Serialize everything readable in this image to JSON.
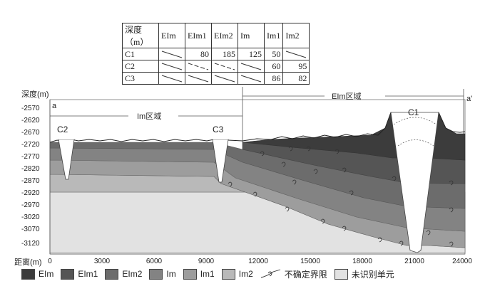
{
  "table": {
    "headers": [
      "深度（m）",
      "EIm",
      "EIm1",
      "EIm2",
      "Im",
      "Im1",
      "Im2"
    ],
    "rows": [
      {
        "label": "C1",
        "values": [
          "",
          "80",
          "185",
          "125",
          "50",
          ""
        ]
      },
      {
        "label": "C2",
        "values": [
          "",
          "",
          "",
          "",
          "60",
          "95"
        ]
      },
      {
        "label": "C3",
        "values": [
          "",
          "",
          "",
          "",
          "86",
          "82"
        ]
      }
    ]
  },
  "section": {
    "y_axis_label": "深度(m)",
    "y_ticks": [
      "-2570",
      "-2620",
      "-2670",
      "-2720",
      "-2770",
      "-2820",
      "-2870",
      "-2920",
      "-2970",
      "-3020",
      "-3070",
      "-3120"
    ],
    "x_axis_label": "距离(m)",
    "x_ticks": [
      "0",
      "3000",
      "6000",
      "9000",
      "12000",
      "15000",
      "18000",
      "21000",
      "24000"
    ],
    "region_left": "Im区域",
    "region_right": "EIm区域",
    "end_left": "a",
    "end_right": "a'",
    "wells": [
      "C2",
      "C3",
      "C1"
    ]
  },
  "legend": [
    {
      "label": "EIm",
      "color": "#3c3c3c"
    },
    {
      "label": "EIm1",
      "color": "#555555"
    },
    {
      "label": "EIm2",
      "color": "#6c6c6c"
    },
    {
      "label": "Im",
      "color": "#838383"
    },
    {
      "label": "Im1",
      "color": "#9d9d9d"
    },
    {
      "label": "Im2",
      "color": "#b9b9b9"
    },
    {
      "label": "不确定界限",
      "icon": "uncertain-boundary-icon"
    },
    {
      "label": "未识别单元",
      "color": "#e2e2e2"
    }
  ]
}
